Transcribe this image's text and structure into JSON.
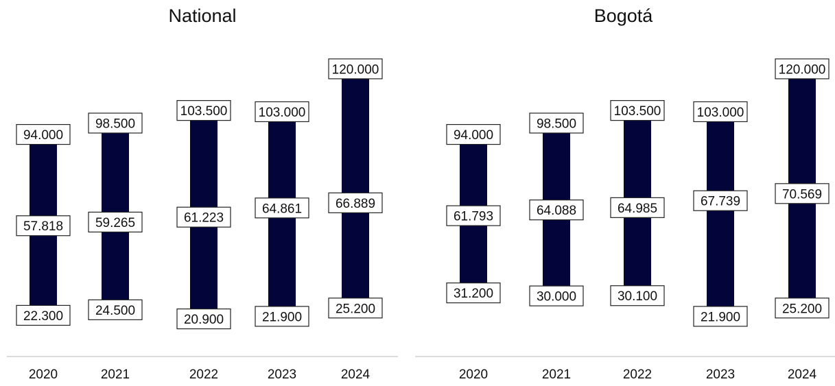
{
  "colors": {
    "bar": "#03053a",
    "box_border": "#222222",
    "axis_line": "#d0d0d0",
    "text": "#111111"
  },
  "chart_data": [
    {
      "type": "range-bar",
      "title": "National",
      "categories": [
        "2020",
        "2021",
        "2022",
        "2023",
        "2024"
      ],
      "series": [
        {
          "values": [
            94.0,
            98.5,
            103.5,
            103.0,
            120.0
          ],
          "labels": [
            "94.000",
            "98.500",
            "103.500",
            "103.000",
            "120.000"
          ]
        },
        {
          "values": [
            57.818,
            59.265,
            61.223,
            64.861,
            66.889
          ],
          "labels": [
            "57.818",
            "59.265",
            "61.223",
            "64.861",
            "66.889"
          ]
        },
        {
          "values": [
            22.3,
            24.5,
            20.9,
            21.9,
            25.2
          ],
          "labels": [
            "22.300",
            "24.500",
            "20.900",
            "21.900",
            "25.200"
          ]
        }
      ],
      "ylim": [
        0,
        130
      ],
      "grid": false
    },
    {
      "type": "range-bar",
      "title": "Bogotá",
      "categories": [
        "2020",
        "2021",
        "2022",
        "2023",
        "2024"
      ],
      "series": [
        {
          "values": [
            94.0,
            98.5,
            103.5,
            103.0,
            120.0
          ],
          "labels": [
            "94.000",
            "98.500",
            "103.500",
            "103.000",
            "120.000"
          ]
        },
        {
          "values": [
            61.793,
            64.088,
            64.985,
            67.739,
            70.569
          ],
          "labels": [
            "61.793",
            "64.088",
            "64.985",
            "67.739",
            "70.569"
          ]
        },
        {
          "values": [
            31.2,
            30.0,
            30.1,
            21.9,
            25.2
          ],
          "labels": [
            "31.200",
            "30.000",
            "30.100",
            "21.900",
            "25.200"
          ]
        }
      ],
      "ylim": [
        0,
        130
      ],
      "grid": false
    }
  ]
}
